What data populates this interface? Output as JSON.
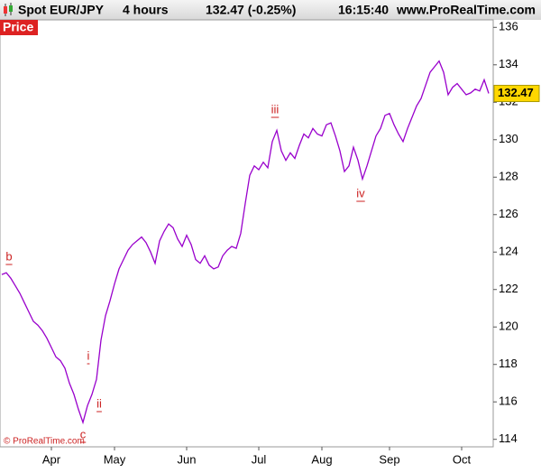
{
  "header": {
    "symbol": "Spot EUR/JPY",
    "period": "4 hours",
    "quote": "132.47 (-0.25%)",
    "time": "16:15:40",
    "site": "www.ProRealTime.com",
    "copyright": "© ProRealTime.com"
  },
  "chart_data": {
    "type": "line",
    "title": "Spot EUR/JPY",
    "categories": [
      null,
      null,
      null,
      null,
      null,
      null,
      null,
      null,
      null,
      null,
      null,
      "Apr",
      null,
      null,
      null,
      null,
      null,
      null,
      null,
      null,
      null,
      null,
      null,
      null,
      null,
      "May",
      null,
      null,
      null,
      null,
      null,
      null,
      null,
      null,
      null,
      null,
      null,
      null,
      null,
      null,
      null,
      "Jun",
      null,
      null,
      null,
      null,
      null,
      null,
      null,
      null,
      null,
      null,
      null,
      null,
      null,
      null,
      null,
      "Jul",
      null,
      null,
      null,
      null,
      null,
      null,
      null,
      null,
      null,
      null,
      null,
      null,
      null,
      "Aug",
      null,
      null,
      null,
      null,
      null,
      null,
      null,
      null,
      null,
      null,
      null,
      null,
      null,
      null,
      "Sep",
      null,
      null,
      null,
      null,
      null,
      null,
      null,
      null,
      null,
      null,
      null,
      null,
      null,
      null,
      null,
      "Oct",
      null,
      null,
      null,
      null,
      null,
      null
    ],
    "series": [
      {
        "name": "Price",
        "color": "#9900cc",
        "values": [
          122.8,
          122.9,
          122.6,
          122.2,
          121.8,
          121.3,
          120.8,
          120.3,
          120.1,
          119.8,
          119.4,
          118.9,
          118.4,
          118.2,
          117.8,
          117.0,
          116.4,
          115.6,
          114.9,
          115.8,
          116.4,
          117.2,
          119.3,
          120.6,
          121.4,
          122.3,
          123.1,
          123.6,
          124.1,
          124.4,
          124.6,
          124.8,
          124.5,
          124.0,
          123.4,
          124.6,
          125.1,
          125.5,
          125.3,
          124.7,
          124.3,
          124.9,
          124.4,
          123.6,
          123.4,
          123.8,
          123.3,
          123.1,
          123.2,
          123.8,
          124.1,
          124.3,
          124.2,
          125.0,
          126.6,
          128.1,
          128.6,
          128.4,
          128.8,
          128.5,
          129.9,
          130.5,
          129.4,
          128.9,
          129.3,
          129.0,
          129.7,
          130.3,
          130.1,
          130.6,
          130.3,
          130.2,
          130.8,
          130.9,
          130.2,
          129.4,
          128.3,
          128.6,
          129.6,
          128.9,
          127.9,
          128.6,
          129.4,
          130.2,
          130.6,
          131.3,
          131.4,
          130.8,
          130.3,
          129.9,
          130.6,
          131.2,
          131.8,
          132.2,
          132.9,
          133.6,
          133.9,
          134.2,
          133.6,
          132.4,
          132.8,
          133.0,
          132.7,
          132.4,
          132.5,
          132.7,
          132.6,
          133.2,
          132.47
        ]
      }
    ],
    "annotations": [
      "b",
      "c",
      "i",
      "ii",
      "iii",
      "iv"
    ],
    "ylim": [
      113.6,
      136.4
    ],
    "yticks": [
      114,
      116,
      118,
      120,
      122,
      124,
      126,
      128,
      130,
      132,
      134,
      136
    ],
    "grid": false
  }
}
